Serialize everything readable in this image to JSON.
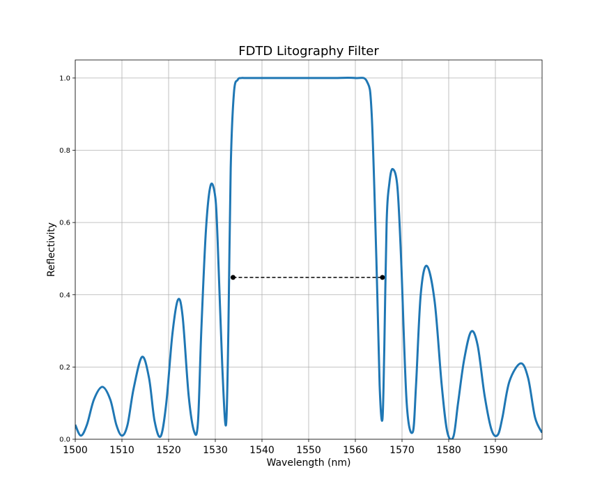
{
  "chart_data": {
    "type": "line",
    "title": "FDTD Litography Filter",
    "xlabel": "Wavelength (nm)",
    "ylabel": "Reflectivity",
    "xlim": [
      1500,
      1600
    ],
    "ylim": [
      0.0,
      1.05
    ],
    "xticks": [
      1500,
      1510,
      1520,
      1530,
      1540,
      1550,
      1560,
      1570,
      1580,
      1590
    ],
    "yticks": [
      0.0,
      0.2,
      0.4,
      0.6,
      0.8,
      1.0
    ],
    "xtick_labels": [
      "1500",
      "1510",
      "1520",
      "1530",
      "1540",
      "1550",
      "1560",
      "1570",
      "1580",
      "1590"
    ],
    "ytick_labels": [
      "0.0",
      "0.2",
      "0.4",
      "0.6",
      "0.8",
      "1.0"
    ],
    "grid": true,
    "series": [
      {
        "color": "#1f77b4",
        "x": [
          1500,
          1501.2,
          1502.5,
          1504,
          1505.8,
          1507.5,
          1508.8,
          1510,
          1511.2,
          1512.5,
          1514.3,
          1515.8,
          1517,
          1518.3,
          1519.5,
          1520.8,
          1522,
          1523,
          1524.3,
          1525.5,
          1526.3,
          1527,
          1528,
          1529,
          1530,
          1530.5,
          1531.5,
          1532.3,
          1532.8,
          1533.3,
          1534,
          1534.8,
          1535.5,
          1536.5,
          1540,
          1545,
          1550,
          1555,
          1560,
          1562.5,
          1563.5,
          1564.5,
          1565.2,
          1565.8,
          1566.2,
          1566.7,
          1567.3,
          1568,
          1569,
          1569.8,
          1571,
          1572.3,
          1573,
          1574,
          1575.3,
          1577,
          1578.5,
          1579.7,
          1581,
          1582,
          1583.3,
          1584.8,
          1586.2,
          1587.7,
          1589.2,
          1590.5,
          1591.5,
          1593,
          1595.4,
          1597,
          1598.5,
          1600
        ],
        "y": [
          0.04,
          0.01,
          0.04,
          0.11,
          0.145,
          0.11,
          0.04,
          0.01,
          0.04,
          0.14,
          0.228,
          0.17,
          0.05,
          0.008,
          0.1,
          0.29,
          0.386,
          0.34,
          0.12,
          0.02,
          0.05,
          0.3,
          0.58,
          0.703,
          0.67,
          0.55,
          0.2,
          0.04,
          0.3,
          0.75,
          0.96,
          0.995,
          1.0,
          1.0,
          1.0,
          1.0,
          1.0,
          1.0,
          1.0,
          0.99,
          0.9,
          0.5,
          0.15,
          0.055,
          0.25,
          0.6,
          0.71,
          0.748,
          0.7,
          0.5,
          0.1,
          0.02,
          0.15,
          0.4,
          0.48,
          0.38,
          0.15,
          0.02,
          0.007,
          0.1,
          0.22,
          0.298,
          0.26,
          0.12,
          0.025,
          0.012,
          0.06,
          0.16,
          0.21,
          0.17,
          0.06,
          0.018
        ]
      },
      {
        "color": "#000000",
        "style": "dashed",
        "markers": true,
        "x": [
          1533.8,
          1565.8
        ],
        "y": [
          0.448,
          0.448
        ]
      }
    ]
  }
}
